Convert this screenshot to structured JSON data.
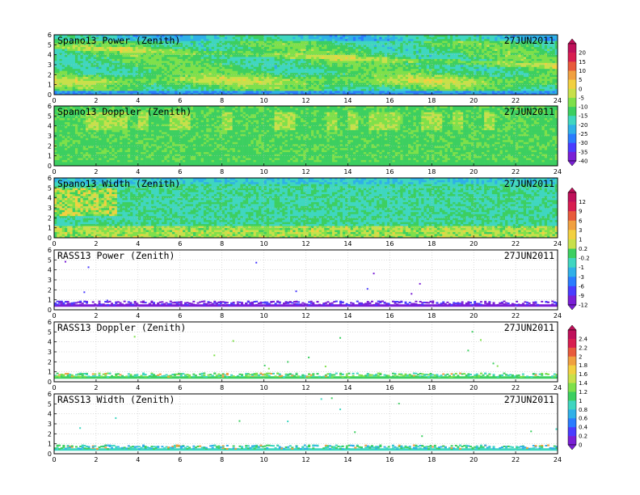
{
  "palette": [
    "#7a1fd6",
    "#4a3cff",
    "#2a7cff",
    "#2fb0e8",
    "#3fd6c0",
    "#3ccf60",
    "#7ee04a",
    "#c8e04a",
    "#f2d040",
    "#f0a040",
    "#e85a3c",
    "#d81e50",
    "#c0105a"
  ],
  "chart_data": [
    {
      "type": "heatmap",
      "title": "Spano13 Power (Zenith)",
      "date": "27JUN2011",
      "xlim": [
        0,
        24
      ],
      "ylim": [
        0,
        6
      ],
      "xticks": [
        0,
        2,
        4,
        6,
        8,
        10,
        12,
        14,
        16,
        18,
        20,
        22,
        24
      ],
      "yticks": [
        0,
        1,
        2,
        3,
        4,
        5,
        6
      ],
      "grid": true,
      "field": "spano_power",
      "density": 1.0,
      "colorbar": [
        "20",
        "15",
        "10",
        "5",
        "0",
        "-5",
        "-10",
        "-15",
        "-20",
        "-25",
        "-30",
        "-35",
        "-40"
      ]
    },
    {
      "type": "heatmap",
      "title": "Spano13 Doppler (Zenith)",
      "date": "27JUN2011",
      "xlim": [
        0,
        24
      ],
      "ylim": [
        0,
        6
      ],
      "xticks": [
        0,
        2,
        4,
        6,
        8,
        10,
        12,
        14,
        16,
        18,
        20,
        22,
        24
      ],
      "yticks": [
        0,
        1,
        2,
        3,
        4,
        5,
        6
      ],
      "grid": true,
      "field": "spano_doppler",
      "density": 1.0
    },
    {
      "type": "heatmap",
      "title": "Spano13 Width (Zenith)",
      "date": "27JUN2011",
      "xlim": [
        0,
        24
      ],
      "ylim": [
        0,
        6
      ],
      "xticks": [
        0,
        2,
        4,
        6,
        8,
        10,
        12,
        14,
        16,
        18,
        20,
        22,
        24
      ],
      "yticks": [
        0,
        1,
        2,
        3,
        4,
        5,
        6
      ],
      "grid": true,
      "field": "spano_width",
      "density": 1.0,
      "colorbar": [
        "12",
        "9",
        "6",
        "3",
        "1",
        "0.2",
        "-0.2",
        "-1",
        "-3",
        "-6",
        "-9",
        "-12"
      ]
    },
    {
      "type": "heatmap",
      "title": "RASS13 Power (Zenith)",
      "date": "27JUN2011",
      "xlim": [
        0,
        24
      ],
      "ylim": [
        0,
        6
      ],
      "xticks": [
        0,
        2,
        4,
        6,
        8,
        10,
        12,
        14,
        16,
        18,
        20,
        22,
        24
      ],
      "yticks": [
        0,
        1,
        2,
        3,
        4,
        5,
        6
      ],
      "grid": true,
      "field": "rass_power",
      "density": 0.0
    },
    {
      "type": "heatmap",
      "title": "RASS13 Doppler (Zenith)",
      "date": "27JUN2011",
      "xlim": [
        0,
        24
      ],
      "ylim": [
        0,
        6
      ],
      "xticks": [
        0,
        2,
        4,
        6,
        8,
        10,
        12,
        14,
        16,
        18,
        20,
        22,
        24
      ],
      "yticks": [
        0,
        1,
        2,
        3,
        4,
        5,
        6
      ],
      "grid": true,
      "field": "rass_doppler",
      "density": 0.0,
      "colorbar": [
        "2.4",
        "2.2",
        "2",
        "1.8",
        "1.6",
        "1.4",
        "1.2",
        "1",
        "0.8",
        "0.6",
        "0.4",
        "0.2",
        "0"
      ]
    },
    {
      "type": "heatmap",
      "title": "RASS13 Width (Zenith)",
      "date": "27JUN2011",
      "xlim": [
        0,
        24
      ],
      "ylim": [
        0,
        6
      ],
      "xticks": [
        0,
        2,
        4,
        6,
        8,
        10,
        12,
        14,
        16,
        18,
        20,
        22,
        24
      ],
      "yticks": [
        0,
        1,
        2,
        3,
        4,
        5,
        6
      ],
      "grid": true,
      "field": "rass_width",
      "density": 0.0
    }
  ]
}
